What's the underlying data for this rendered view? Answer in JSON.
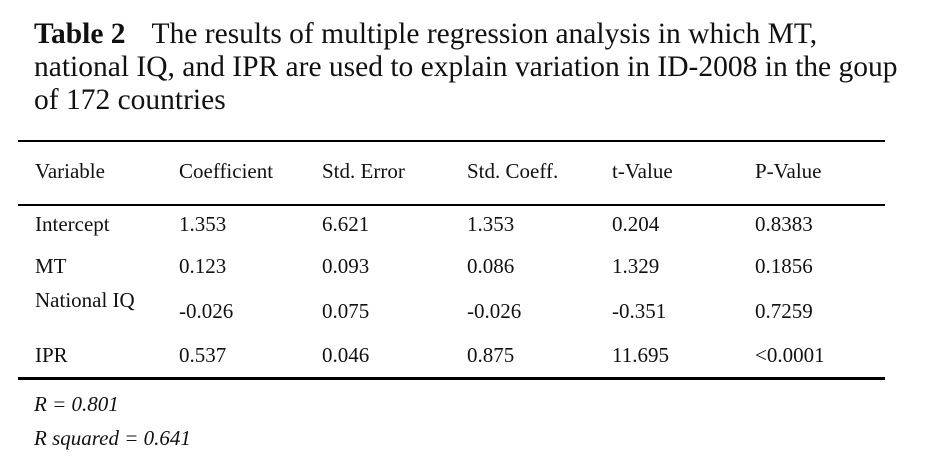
{
  "caption": {
    "label": "Table 2",
    "text": "The results of multiple regression analysis in which MT, national IQ, and IPR are used to explain variation in ID-2008 in the goup of 172 countries"
  },
  "table": {
    "headers": [
      "Variable",
      "Coefficient",
      "Std. Error",
      "Std. Coeff.",
      "t-Value",
      "P-Value"
    ],
    "rows": [
      [
        "Intercept",
        "1.353",
        "6.621",
        "1.353",
        "0.204",
        "0.8383"
      ],
      [
        "MT",
        "0.123",
        "0.093",
        "0.086",
        "1.329",
        "0.1856"
      ],
      [
        "National IQ",
        "-0.026",
        "0.075",
        "-0.026",
        "-0.351",
        "0.7259"
      ],
      [
        "IPR",
        "0.537",
        "0.046",
        "0.875",
        "11.695",
        "<0.0001"
      ]
    ]
  },
  "notes": [
    "R = 0.801",
    "R squared = 0.641"
  ]
}
